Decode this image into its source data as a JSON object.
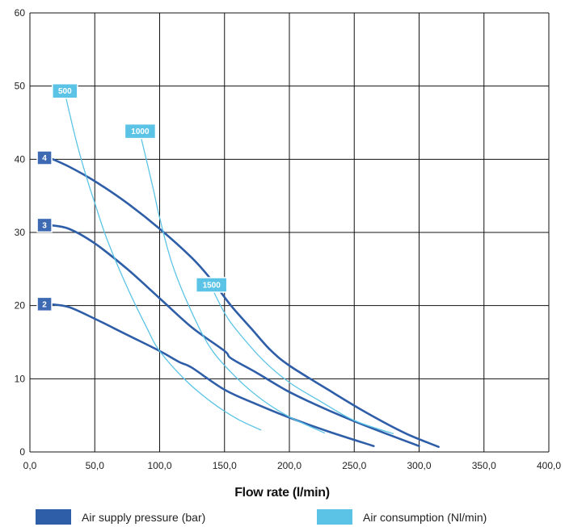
{
  "chart_data": {
    "type": "line",
    "title": "",
    "xlabel": "Flow rate (l/min)",
    "ylabel": "",
    "xlim": [
      0,
      400
    ],
    "ylim": [
      0,
      60
    ],
    "x_ticks": [
      "0,0",
      "50,0",
      "100,0",
      "150,0",
      "200,0",
      "250,0",
      "300,0",
      "350,0",
      "400,0"
    ],
    "y_ticks": [
      "0",
      "10",
      "20",
      "30",
      "40",
      "50",
      "60"
    ],
    "grid": true,
    "legend_position": "bottom",
    "legend": [
      {
        "label": "Air supply pressure (bar)",
        "color": "#2f5ea8"
      },
      {
        "label": "Air consumption (Nl/min)",
        "color": "#5bc4e6"
      }
    ],
    "series": [
      {
        "name": "4",
        "group": "pressure",
        "color": "#2f5ea8",
        "x": [
          15,
          30,
          50,
          75,
          100,
          125,
          140,
          155,
          170,
          185,
          200,
          230,
          260,
          290,
          315
        ],
        "y": [
          40.2,
          39,
          37,
          34,
          30.5,
          26.5,
          23.5,
          20,
          17,
          14,
          11.8,
          8.5,
          5.3,
          2.5,
          0.7
        ]
      },
      {
        "name": "3",
        "group": "pressure",
        "color": "#2f5ea8",
        "x": [
          15,
          30,
          50,
          75,
          100,
          125,
          150,
          155,
          175,
          200,
          230,
          260,
          300
        ],
        "y": [
          31,
          30.5,
          28.5,
          25,
          21,
          17,
          13.8,
          12.8,
          10.8,
          8.2,
          5.7,
          3.5,
          0.8
        ]
      },
      {
        "name": "2",
        "group": "pressure",
        "color": "#2f5ea8",
        "x": [
          15,
          30,
          50,
          75,
          100,
          115,
          125,
          150,
          175,
          200,
          230,
          265
        ],
        "y": [
          20.2,
          19.8,
          18.2,
          16,
          13.8,
          12.3,
          11.5,
          8.5,
          6.5,
          4.7,
          2.8,
          0.8
        ]
      },
      {
        "name": "500",
        "group": "consumption",
        "color": "#5bc4e6",
        "x": [
          27,
          35,
          42,
          50,
          60,
          75,
          90,
          100,
          120,
          140,
          160,
          178
        ],
        "y": [
          49,
          43,
          38.5,
          34,
          28.8,
          22.5,
          17,
          13.8,
          9.8,
          6.8,
          4.5,
          3
        ]
      },
      {
        "name": "1000",
        "group": "consumption",
        "color": "#5bc4e6",
        "x": [
          85,
          95,
          100,
          110,
          125,
          140,
          160,
          180,
          200,
          227
        ],
        "y": [
          43.5,
          36,
          32,
          25.5,
          19,
          14,
          10,
          7,
          4.8,
          2.6
        ]
      },
      {
        "name": "1500",
        "group": "consumption",
        "color": "#5bc4e6",
        "x": [
          140,
          150,
          160,
          180,
          200,
          225,
          250,
          280
        ],
        "y": [
          22.5,
          19,
          16.5,
          12.5,
          9.5,
          6.8,
          4.3,
          2.5
        ]
      }
    ]
  }
}
